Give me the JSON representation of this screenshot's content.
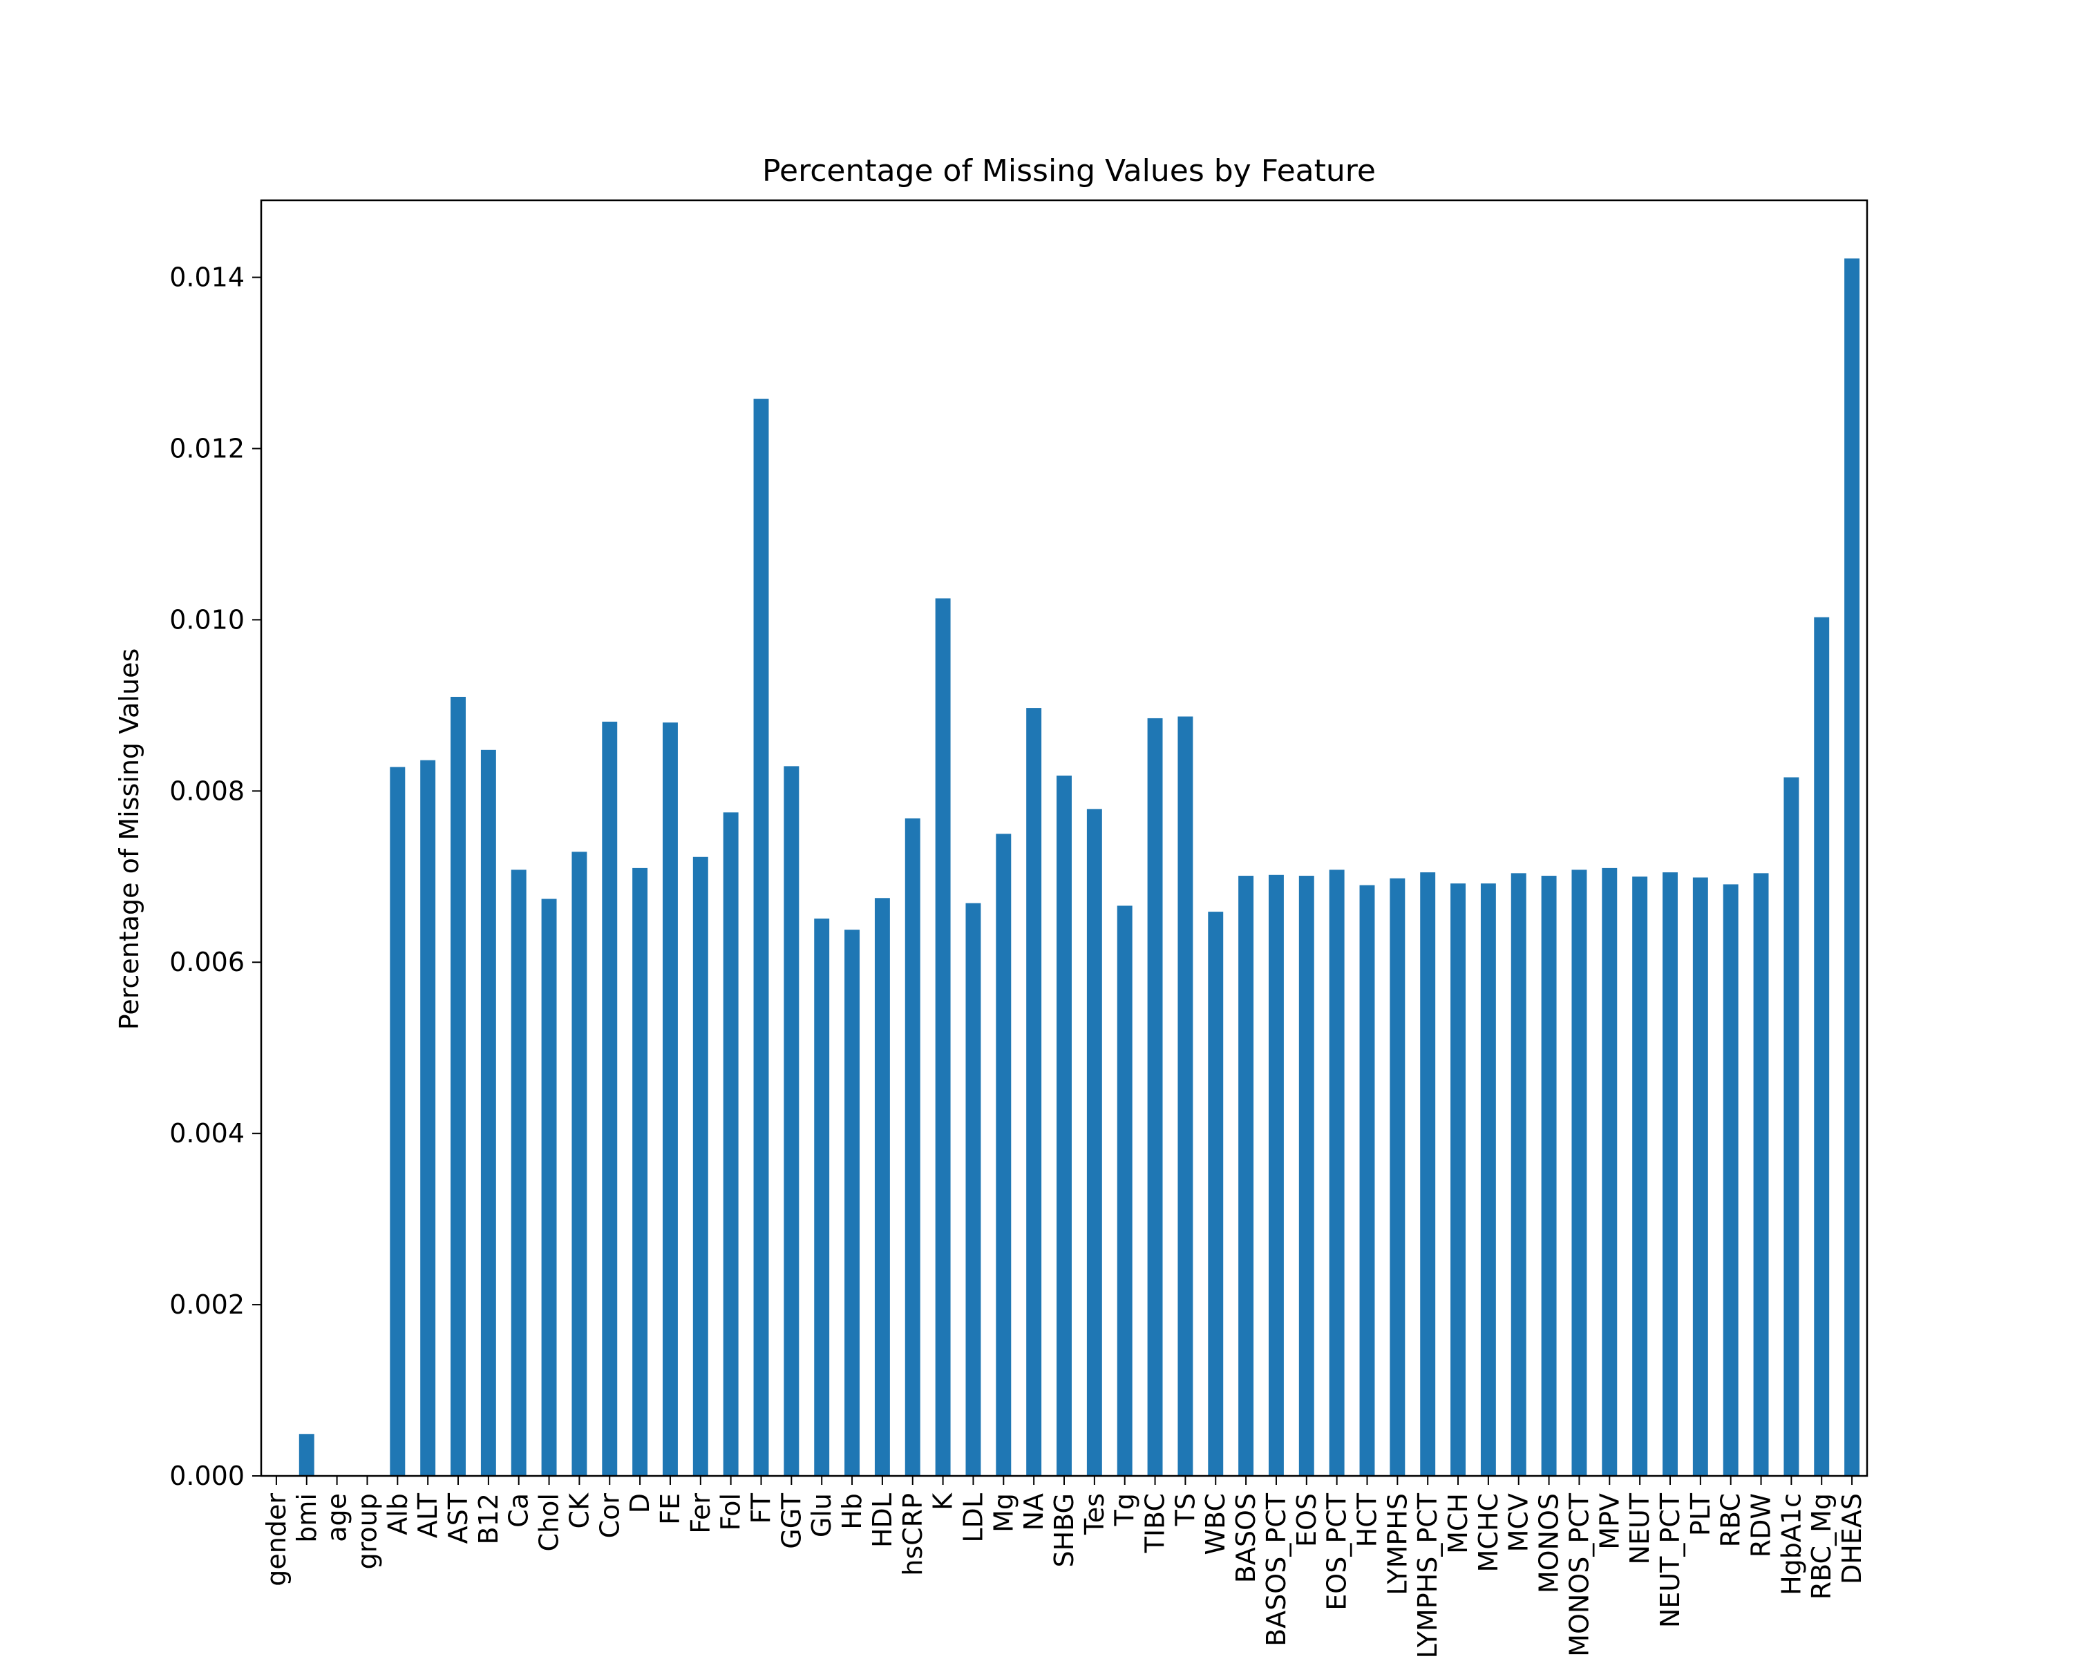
{
  "chart_data": {
    "type": "bar",
    "title": "Percentage of Missing Values by Feature",
    "xlabel": "",
    "ylabel": "Percentage of Missing Values",
    "ylim": [
      0,
      0.0149
    ],
    "yticks": [
      "0.000",
      "0.002",
      "0.004",
      "0.006",
      "0.008",
      "0.010",
      "0.012",
      "0.014"
    ],
    "grid": false,
    "legend": "none",
    "bar_color": "#1f77b4",
    "categories": [
      "gender",
      "bmi",
      "age",
      "group",
      "Alb",
      "ALT",
      "AST",
      "B12",
      "Ca",
      "Chol",
      "CK",
      "Cor",
      "D",
      "FE",
      "Fer",
      "Fol",
      "FT",
      "GGT",
      "Glu",
      "Hb",
      "HDL",
      "hsCRP",
      "K",
      "LDL",
      "Mg",
      "NA",
      "SHBG",
      "Tes",
      "Tg",
      "TIBC",
      "TS",
      "WBC",
      "BASOS",
      "BASOS_PCT",
      "EOS",
      "EOS_PCT",
      "HCT",
      "LYMPHS",
      "LYMPHS_PCT",
      "MCH",
      "MCHC",
      "MCV",
      "MONOS",
      "MONOS_PCT",
      "MPV",
      "NEUT",
      "NEUT_PCT",
      "PLT",
      "RBC",
      "RDW",
      "HgbA1c",
      "RBC_Mg",
      "DHEAS"
    ],
    "values": [
      0.0,
      0.00049,
      0.0,
      0.0,
      0.00828,
      0.00836,
      0.0091,
      0.00848,
      0.00708,
      0.00674,
      0.00729,
      0.00881,
      0.0071,
      0.0088,
      0.00723,
      0.00775,
      0.01258,
      0.00829,
      0.00651,
      0.00638,
      0.00675,
      0.00768,
      0.01025,
      0.00669,
      0.0075,
      0.00897,
      0.00818,
      0.00779,
      0.00666,
      0.00885,
      0.00887,
      0.00659,
      0.00701,
      0.00702,
      0.00701,
      0.00708,
      0.0069,
      0.00698,
      0.00705,
      0.00692,
      0.00692,
      0.00704,
      0.00701,
      0.00708,
      0.0071,
      0.007,
      0.00705,
      0.00699,
      0.00691,
      0.00704,
      0.00816,
      0.01003,
      0.01422
    ]
  }
}
